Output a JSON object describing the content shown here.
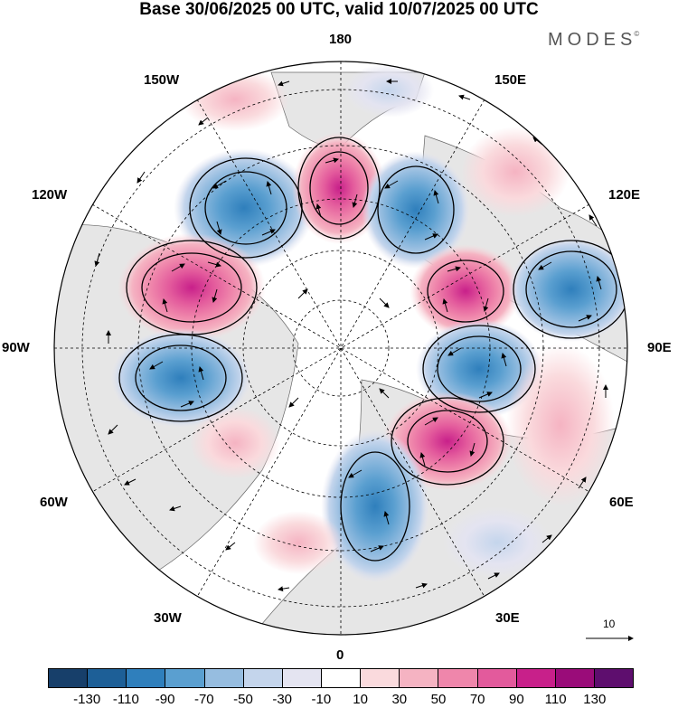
{
  "header": {
    "title": "Base 30/06/2025 00 UTC, valid 10/07/2025 00 UTC",
    "brand": "MODES",
    "brand_mark": "©"
  },
  "map": {
    "projection": "north-polar-stereographic",
    "longitude_labels": {
      "top": "180",
      "bottom": "0",
      "left": "90W",
      "right": "90E",
      "upper_left_1": "150W",
      "upper_left_2": "120W",
      "lower_left_1": "60W",
      "lower_left_2": "30W",
      "upper_right_1": "150E",
      "upper_right_2": "120E",
      "lower_right_1": "60E",
      "lower_right_2": "30E"
    },
    "reference_vector_label": "10",
    "graticule": "dashed",
    "wind_vectors": "shown"
  },
  "colorbar": {
    "colors": [
      "#173f6a",
      "#1d5f97",
      "#2f7fbc",
      "#5a9fd0",
      "#96bde0",
      "#c4d5ec",
      "#e4e4f1",
      "#ffffff",
      "#fadadd",
      "#f5b3c2",
      "#ef86ab",
      "#e35a9c",
      "#c8208a",
      "#9a0c79",
      "#5e0e6e"
    ],
    "ticks": [
      "-130",
      "-110",
      "-90",
      "-70",
      "-50",
      "-30",
      "-10",
      "10",
      "30",
      "50",
      "70",
      "90",
      "110",
      "130"
    ]
  }
}
